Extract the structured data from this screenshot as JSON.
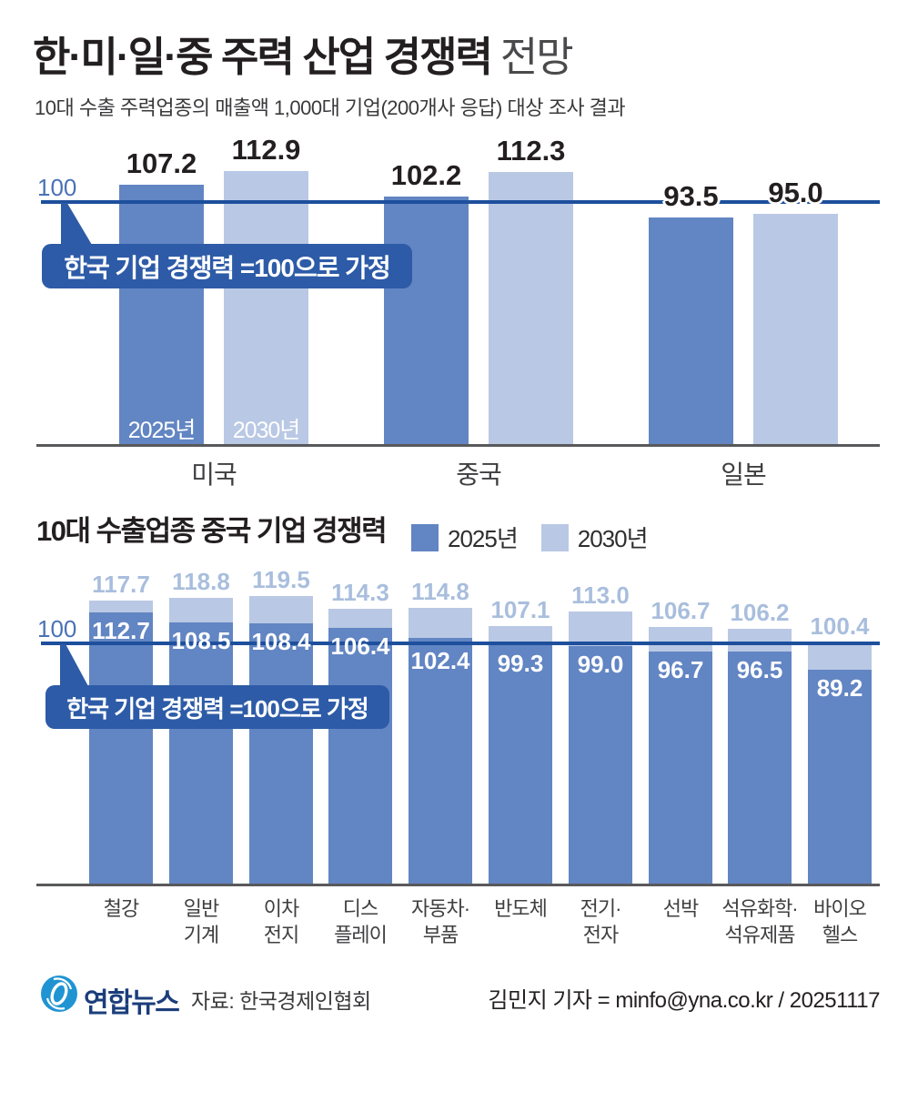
{
  "header": {
    "title_main": "한·미·일·중 주력 산업 경쟁력",
    "title_suffix": "전망",
    "subtitle": "10대 수출 주력업종의 매출액 1,000대 기업(200개사 응답) 대상 조사 결과"
  },
  "colors": {
    "bar_2025": "#6285c3",
    "bar_2030": "#b9c8e4",
    "baseline_line": "#1d4f9c",
    "callout_bg": "#2d5ba7",
    "value_dark_text": "#231f20",
    "value_light_text": "#a9bedd",
    "value_white_text": "#ffffff",
    "axis_gray": "#58595b",
    "baseline_label_blue": "#4a72b5",
    "logo_blue": "#2094d3",
    "logo_navy": "#1b3e7b"
  },
  "chart_data": [
    {
      "type": "bar",
      "title": "한·미·일·중 주력 산업 경쟁력 전망",
      "categories": [
        "미국",
        "중국",
        "일본"
      ],
      "series": [
        {
          "name": "2025년",
          "values": [
            107.2,
            102.2,
            93.5
          ]
        },
        {
          "name": "2030년",
          "values": [
            112.9,
            112.3,
            95.0
          ]
        }
      ],
      "baseline": 100,
      "baseline_label": "100",
      "annotation": "한국 기업 경쟁력 =100으로 가정",
      "legend_position": "inside-first-bars",
      "grid": false
    },
    {
      "type": "bar",
      "title": "10대 수출업종 중국 기업 경쟁력",
      "categories": [
        "철강",
        "일반\n기계",
        "이차\n전지",
        "디스\n플레이",
        "자동차·\n부품",
        "반도체",
        "전기·\n전자",
        "선박",
        "석유화학·\n석유제품",
        "바이오\n헬스"
      ],
      "series": [
        {
          "name": "2025년",
          "values": [
            112.7,
            108.5,
            108.4,
            106.4,
            102.4,
            99.3,
            99.0,
            96.7,
            96.5,
            89.2
          ]
        },
        {
          "name": "2030년",
          "values": [
            117.7,
            118.8,
            119.5,
            114.3,
            114.8,
            107.1,
            113.0,
            106.7,
            106.2,
            100.4
          ]
        }
      ],
      "baseline": 100,
      "baseline_label": "100",
      "annotation": "한국 기업 경쟁력 =100으로 가정",
      "legend_position": "top-right-of-title",
      "grid": false
    }
  ],
  "footer": {
    "logo_text": "연합뉴스",
    "source": "자료: 한국경제인협회",
    "byline": "김민지 기자 = minfo@yna.co.kr / 20251117"
  }
}
